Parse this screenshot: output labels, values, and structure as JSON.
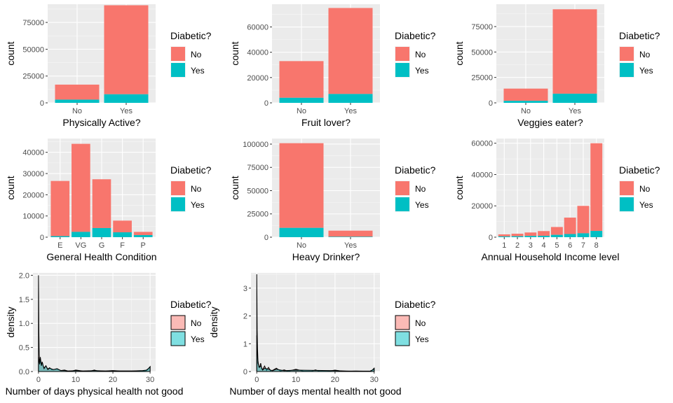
{
  "legend": {
    "title": "Diabetic?",
    "items": [
      {
        "label": "No",
        "color": "#F8766D"
      },
      {
        "label": "Yes",
        "color": "#00BFC4"
      }
    ]
  },
  "chart_data": [
    {
      "type": "bar",
      "stacked": true,
      "xlabel": "Physically Active?",
      "ylabel": "count",
      "categories": [
        "No",
        "Yes"
      ],
      "series": [
        {
          "name": "No",
          "values": [
            14000,
            83000
          ]
        },
        {
          "name": "Yes",
          "values": [
            3000,
            8000
          ]
        }
      ],
      "ylim": [
        0,
        92000
      ],
      "yticks": [
        0,
        25000,
        50000,
        75000
      ]
    },
    {
      "type": "bar",
      "stacked": true,
      "xlabel": "Fruit lover?",
      "ylabel": "count",
      "categories": [
        "No",
        "Yes"
      ],
      "series": [
        {
          "name": "No",
          "values": [
            29000,
            68000
          ]
        },
        {
          "name": "Yes",
          "values": [
            4000,
            7000
          ]
        }
      ],
      "ylim": [
        0,
        78000
      ],
      "yticks": [
        0,
        20000,
        40000,
        60000
      ]
    },
    {
      "type": "bar",
      "stacked": true,
      "xlabel": "Veggies eater?",
      "ylabel": "count",
      "categories": [
        "No",
        "Yes"
      ],
      "series": [
        {
          "name": "No",
          "values": [
            12000,
            83000
          ]
        },
        {
          "name": "Yes",
          "values": [
            2000,
            9000
          ]
        }
      ],
      "ylim": [
        0,
        97000
      ],
      "yticks": [
        0,
        25000,
        50000,
        75000
      ]
    },
    {
      "type": "bar",
      "stacked": true,
      "xlabel": "General Health Condition",
      "ylabel": "count",
      "categories": [
        "E",
        "VG",
        "G",
        "F",
        "P"
      ],
      "series": [
        {
          "name": "No",
          "values": [
            26000,
            41500,
            23000,
            5500,
            1500
          ]
        },
        {
          "name": "Yes",
          "values": [
            500,
            2500,
            4300,
            2300,
            1000
          ]
        }
      ],
      "ylim": [
        0,
        46500
      ],
      "yticks": [
        0,
        10000,
        20000,
        30000,
        40000
      ]
    },
    {
      "type": "bar",
      "stacked": true,
      "xlabel": "Heavy Drinker?",
      "ylabel": "count",
      "categories": [
        "No",
        "Yes"
      ],
      "series": [
        {
          "name": "No",
          "values": [
            91000,
            6500
          ]
        },
        {
          "name": "Yes",
          "values": [
            10000,
            500
          ]
        }
      ],
      "ylim": [
        0,
        106000
      ],
      "yticks": [
        0,
        25000,
        50000,
        75000,
        100000
      ]
    },
    {
      "type": "bar",
      "stacked": true,
      "xlabel": "Annual Household Income level",
      "ylabel": "count",
      "categories": [
        "1",
        "2",
        "3",
        "4",
        "5",
        "6",
        "7",
        "8"
      ],
      "series": [
        {
          "name": "No",
          "values": [
            1300,
            1600,
            2200,
            3000,
            5000,
            10500,
            17500,
            56000
          ]
        },
        {
          "name": "Yes",
          "values": [
            500,
            600,
            800,
            900,
            1500,
            2000,
            2500,
            4000
          ]
        }
      ],
      "ylim": [
        0,
        63000
      ],
      "yticks": [
        0,
        20000,
        40000,
        60000
      ]
    },
    {
      "type": "area",
      "subtype": "density",
      "xlabel": "Number of days physical health not good",
      "ylabel": "density",
      "xlim": [
        0,
        30
      ],
      "ylim": [
        0,
        2.05
      ],
      "xticks": [
        0,
        10,
        20,
        30
      ],
      "yticks": [
        0,
        0.5,
        1.0,
        1.5,
        2.0
      ],
      "ytick_labels": [
        "0.0",
        "0.5",
        "1.0",
        "1.5",
        "2.0"
      ],
      "series": [
        {
          "name": "No",
          "x": [
            0,
            0.05,
            0.12,
            0.2,
            0.3,
            0.45,
            0.6,
            0.8,
            1.0,
            1.3,
            1.6,
            2.0,
            2.5,
            3.0,
            3.5,
            4.0,
            5.0,
            6.0,
            7.0,
            8.0,
            9.0,
            10.0,
            12.0,
            14.0,
            15.0,
            16.0,
            18.0,
            20.0,
            22.0,
            25.0,
            27.0,
            28.0,
            29.0,
            29.5,
            30.0
          ],
          "y": [
            2.0,
            1.6,
            0.8,
            0.35,
            0.2,
            0.25,
            0.18,
            0.14,
            0.2,
            0.1,
            0.08,
            0.12,
            0.05,
            0.08,
            0.04,
            0.04,
            0.05,
            0.02,
            0.03,
            0.01,
            0.01,
            0.03,
            0.01,
            0.01,
            0.03,
            0.01,
            0.01,
            0.02,
            0.01,
            0.01,
            0.01,
            0.01,
            0.02,
            0.05,
            0.1
          ]
        },
        {
          "name": "Yes",
          "x": [
            0,
            0.1,
            0.3,
            0.5,
            0.8,
            1.0,
            1.5,
            2.0,
            2.5,
            3.0,
            4.0,
            5.0,
            6.0,
            7.0,
            8.0,
            10.0,
            12.0,
            15.0,
            18.0,
            20.0,
            22.0,
            25.0,
            28.0,
            29.0,
            29.5,
            30.0
          ],
          "y": [
            0.3,
            0.25,
            0.15,
            0.3,
            0.12,
            0.2,
            0.06,
            0.12,
            0.04,
            0.07,
            0.04,
            0.06,
            0.02,
            0.02,
            0.01,
            0.02,
            0.01,
            0.02,
            0.01,
            0.01,
            0.01,
            0.01,
            0.02,
            0.03,
            0.06,
            0.1
          ]
        }
      ]
    },
    {
      "type": "area",
      "subtype": "density",
      "xlabel": "Number of days mental health not good",
      "ylabel": "density",
      "xlim": [
        0,
        30
      ],
      "ylim": [
        0,
        3.55
      ],
      "xticks": [
        0,
        10,
        20,
        30
      ],
      "yticks": [
        0,
        1,
        2,
        3
      ],
      "ytick_labels": [
        "0",
        "1",
        "2",
        "3"
      ],
      "series": [
        {
          "name": "No",
          "x": [
            0,
            0.05,
            0.1,
            0.2,
            0.3,
            0.5,
            0.7,
            1.0,
            1.3,
            1.6,
            2.0,
            2.5,
            3.0,
            3.5,
            4.0,
            5.0,
            6.0,
            7.0,
            8.0,
            10.0,
            12.0,
            14.0,
            15.0,
            16.0,
            18.0,
            20.0,
            22.0,
            25.0,
            28.0,
            29.0,
            29.5,
            30.0
          ],
          "y": [
            3.5,
            2.6,
            1.5,
            0.8,
            0.4,
            0.2,
            0.15,
            0.3,
            0.08,
            0.1,
            0.2,
            0.04,
            0.15,
            0.03,
            0.04,
            0.12,
            0.02,
            0.06,
            0.01,
            0.08,
            0.01,
            0.01,
            0.06,
            0.01,
            0.01,
            0.05,
            0.01,
            0.02,
            0.01,
            0.01,
            0.04,
            0.1
          ]
        },
        {
          "name": "Yes",
          "x": [
            0,
            0.1,
            0.3,
            0.6,
            1.0,
            1.5,
            2.0,
            3.0,
            4.0,
            5.0,
            7.0,
            10.0,
            15.0,
            20.0,
            25.0,
            29.0,
            29.5,
            30.0
          ],
          "y": [
            1.3,
            0.8,
            0.3,
            0.15,
            0.2,
            0.05,
            0.12,
            0.08,
            0.03,
            0.08,
            0.03,
            0.05,
            0.04,
            0.03,
            0.01,
            0.02,
            0.05,
            0.12
          ]
        }
      ]
    }
  ]
}
